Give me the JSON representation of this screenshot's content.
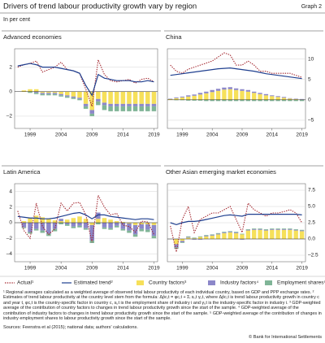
{
  "header": {
    "title": "Drivers of trend labour productivity growth vary by region",
    "graph_label": "Graph 2",
    "unit": "In per cent"
  },
  "legend": [
    {
      "name": "Actual¹",
      "color": "#a3262e",
      "kind": "dotted-line"
    },
    {
      "name": "Estimated trend²",
      "color": "#1f3f8f",
      "kind": "line"
    },
    {
      "name": "Country factors³",
      "color": "#f6e05a",
      "kind": "bar"
    },
    {
      "name": "Industry factors⁴",
      "color": "#8c87c9",
      "kind": "bar"
    },
    {
      "name": "Employment shares⁵",
      "color": "#80b597",
      "kind": "bar"
    }
  ],
  "chart_data": [
    {
      "type": "combo",
      "title": "Advanced economies",
      "yaxis": "left",
      "grid": true,
      "x": [
        1997,
        1998,
        1999,
        2000,
        2001,
        2002,
        2003,
        2004,
        2005,
        2006,
        2007,
        2008,
        2009,
        2010,
        2011,
        2012,
        2013,
        2014,
        2015,
        2016,
        2017,
        2018,
        2019
      ],
      "xlim": [
        1996.5,
        2019.6
      ],
      "xticks": [
        1999,
        2004,
        2009,
        2014,
        2019
      ],
      "ylim": [
        -3,
        3.5
      ],
      "yticks": [
        {
          "value": -2,
          "label": "–2"
        },
        0,
        2
      ],
      "series": [
        {
          "values": [
            2.0,
            2.2,
            2.3,
            2.5,
            1.6,
            1.8,
            2.0,
            2.4,
            1.8,
            1.7,
            1.5,
            0.2,
            -1.2,
            2.6,
            1.4,
            0.9,
            0.8,
            0.9,
            1.0,
            0.7,
            1.0,
            1.1,
            0.8
          ]
        },
        {
          "values": [
            2.1,
            2.2,
            2.3,
            2.2,
            2.0,
            2.0,
            2.0,
            1.9,
            1.8,
            1.7,
            1.5,
            0.5,
            -0.3,
            1.4,
            1.1,
            1.0,
            0.9,
            0.9,
            0.9,
            0.8,
            0.8,
            0.9,
            0.8
          ]
        },
        {
          "values": [
            0.0,
            0.1,
            0.2,
            0.2,
            -0.1,
            -0.1,
            -0.1,
            -0.2,
            -0.3,
            -0.4,
            -0.5,
            -1.0,
            -1.5,
            -0.6,
            -0.9,
            -1.0,
            -1.0,
            -1.0,
            -1.0,
            -1.0,
            -1.0,
            -1.0,
            -1.0
          ]
        },
        {
          "values": [
            0.0,
            0.0,
            0.0,
            -0.1,
            -0.1,
            -0.1,
            -0.1,
            -0.1,
            -0.1,
            -0.1,
            -0.1,
            -0.2,
            -0.3,
            -0.2,
            -0.2,
            -0.2,
            -0.2,
            -0.2,
            -0.2,
            -0.2,
            -0.2,
            -0.2,
            -0.2
          ]
        },
        {
          "values": [
            0.0,
            0.0,
            -0.1,
            -0.1,
            -0.1,
            -0.1,
            -0.1,
            -0.1,
            -0.1,
            -0.1,
            -0.1,
            -0.2,
            -0.2,
            -0.3,
            -0.4,
            -0.4,
            -0.4,
            -0.4,
            -0.4,
            -0.4,
            -0.4,
            -0.4,
            -0.4
          ]
        }
      ]
    },
    {
      "type": "combo",
      "title": "China",
      "yaxis": "right",
      "grid": true,
      "x": [
        1997,
        1998,
        1999,
        2000,
        2001,
        2002,
        2003,
        2004,
        2005,
        2006,
        2007,
        2008,
        2009,
        2010,
        2011,
        2012,
        2013,
        2014,
        2015,
        2016,
        2017,
        2018,
        2019
      ],
      "xlim": [
        1996.5,
        2019.6
      ],
      "xticks": [
        1999,
        2004,
        2009,
        2014,
        2019
      ],
      "ylim": [
        -7,
        12.5
      ],
      "yticks": [
        {
          "value": -5,
          "label": "–5"
        },
        0,
        5,
        10
      ],
      "series": [
        {
          "values": [
            8.5,
            7.0,
            6.5,
            7.5,
            8.0,
            8.5,
            9.0,
            9.5,
            10.5,
            11.5,
            11.0,
            8.5,
            8.5,
            9.5,
            8.5,
            7.0,
            7.0,
            6.5,
            6.5,
            6.5,
            6.5,
            6.0,
            5.5
          ]
        },
        {
          "values": [
            6.0,
            6.2,
            6.4,
            6.6,
            6.8,
            7.0,
            7.2,
            7.4,
            7.6,
            7.7,
            7.8,
            7.6,
            7.4,
            7.2,
            7.0,
            6.7,
            6.4,
            6.2,
            6.0,
            5.8,
            5.6,
            5.4,
            5.2
          ]
        },
        {
          "values": [
            0.2,
            0.4,
            0.6,
            0.8,
            1.0,
            1.3,
            1.6,
            1.9,
            2.2,
            2.5,
            2.6,
            2.4,
            2.2,
            2.0,
            1.7,
            1.4,
            1.1,
            0.9,
            0.7,
            0.5,
            0.3,
            0.2,
            0.1
          ]
        },
        {
          "values": [
            0.1,
            0.2,
            0.2,
            0.3,
            0.3,
            0.4,
            0.4,
            0.5,
            0.5,
            0.5,
            0.5,
            0.4,
            0.4,
            0.4,
            0.3,
            0.3,
            0.3,
            0.2,
            0.2,
            0.2,
            0.1,
            0.1,
            0.1
          ]
        },
        {
          "values": [
            0.0,
            -0.1,
            -0.1,
            -0.2,
            -0.2,
            -0.2,
            -0.3,
            -0.3,
            -0.3,
            -0.3,
            -0.3,
            -0.3,
            -0.3,
            -0.3,
            -0.3,
            -0.3,
            -0.3,
            -0.3,
            -0.3,
            -0.3,
            -0.3,
            -0.3,
            -0.3
          ]
        }
      ]
    },
    {
      "type": "combo",
      "title": "Latin America",
      "yaxis": "left",
      "grid": true,
      "x": [
        1997,
        1998,
        1999,
        2000,
        2001,
        2002,
        2003,
        2004,
        2005,
        2006,
        2007,
        2008,
        2009,
        2010,
        2011,
        2012,
        2013,
        2014,
        2015,
        2016,
        2017,
        2018,
        2019
      ],
      "xlim": [
        1996.5,
        2019.6
      ],
      "xticks": [
        1999,
        2004,
        2009,
        2014,
        2019
      ],
      "ylim": [
        -5,
        5
      ],
      "yticks": [
        {
          "value": -4,
          "label": "–4"
        },
        {
          "value": -2,
          "label": "–2"
        },
        0,
        2,
        4
      ],
      "series": [
        {
          "values": [
            1.5,
            -1.0,
            -2.0,
            2.5,
            -0.5,
            -1.5,
            -0.8,
            2.5,
            1.5,
            2.5,
            2.6,
            1.0,
            -2.5,
            3.5,
            2.0,
            1.0,
            1.2,
            -0.3,
            -0.5,
            -1.2,
            0.2,
            0.1,
            -1.5
          ]
        },
        {
          "values": [
            0.8,
            0.7,
            0.6,
            0.6,
            0.5,
            0.5,
            0.6,
            0.8,
            1.0,
            1.2,
            1.3,
            1.0,
            0.5,
            1.0,
            1.0,
            0.8,
            0.7,
            0.6,
            0.5,
            0.4,
            0.5,
            0.5,
            0.4
          ]
        },
        {
          "values": [
            0.0,
            0.2,
            0.6,
            0.9,
            0.7,
            0.5,
            0.3,
            0.2,
            0.4,
            0.6,
            0.8,
            0.5,
            -0.3,
            0.5,
            0.6,
            0.4,
            0.2,
            0.1,
            -0.1,
            -0.3,
            -0.2,
            -0.2,
            -0.3
          ]
        },
        {
          "values": [
            0.0,
            -0.6,
            -1.2,
            -0.8,
            -1.0,
            -1.4,
            -0.8,
            0.3,
            -0.2,
            -0.5,
            -0.4,
            -0.7,
            -2.0,
            0.8,
            -0.6,
            -0.7,
            -0.4,
            -0.8,
            -0.9,
            -1.2,
            -0.6,
            -0.7,
            -1.4
          ]
        },
        {
          "values": [
            0.0,
            -0.1,
            -0.2,
            -0.2,
            -0.3,
            -0.3,
            -0.3,
            -0.2,
            -0.2,
            -0.2,
            -0.2,
            -0.2,
            -0.3,
            -0.2,
            -0.2,
            -0.2,
            -0.2,
            -0.2,
            -0.3,
            -0.3,
            -0.3,
            -0.3,
            -0.3
          ]
        }
      ]
    },
    {
      "type": "combo",
      "title": "Other Asian emerging market economies",
      "yaxis": "right",
      "grid": true,
      "x": [
        1997,
        1998,
        1999,
        2000,
        2001,
        2002,
        2003,
        2004,
        2005,
        2006,
        2007,
        2008,
        2009,
        2010,
        2011,
        2012,
        2013,
        2014,
        2015,
        2016,
        2017,
        2018,
        2019
      ],
      "xlim": [
        1996.5,
        2019.6
      ],
      "xticks": [
        1999,
        2004,
        2009,
        2014,
        2019
      ],
      "ylim": [
        -3.5,
        8.5
      ],
      "yticks": [
        {
          "value": -2.5,
          "label": "–2.5"
        },
        {
          "value": 0,
          "label": "0.0"
        },
        2.5,
        {
          "value": 5,
          "label": "5.0"
        },
        7.5
      ],
      "series": [
        {
          "values": [
            2.0,
            -2.0,
            3.0,
            5.0,
            1.0,
            3.0,
            3.5,
            4.0,
            4.0,
            4.5,
            5.0,
            3.0,
            1.0,
            5.5,
            4.5,
            4.0,
            3.5,
            4.0,
            4.0,
            4.2,
            4.5,
            4.0,
            2.5
          ]
        },
        {
          "values": [
            2.5,
            2.2,
            2.5,
            2.7,
            2.7,
            2.8,
            3.0,
            3.2,
            3.4,
            3.6,
            3.7,
            3.6,
            3.5,
            3.8,
            3.8,
            3.8,
            3.8,
            3.8,
            3.8,
            3.8,
            3.8,
            3.8,
            3.7
          ]
        },
        {
          "values": [
            0.0,
            -0.8,
            -0.3,
            0.2,
            0.1,
            0.3,
            0.4,
            0.5,
            0.7,
            0.9,
            1.0,
            0.9,
            0.7,
            1.3,
            1.4,
            1.4,
            1.3,
            1.4,
            1.4,
            1.4,
            1.4,
            1.3,
            1.2
          ]
        },
        {
          "values": [
            0.0,
            -0.5,
            -0.2,
            0.1,
            -0.1,
            -0.1,
            0.1,
            0.1,
            0.1,
            0.1,
            0.1,
            0.1,
            -0.1,
            0.1,
            0.1,
            0.1,
            0.1,
            0.1,
            0.1,
            0.1,
            0.1,
            0.1,
            0.1
          ]
        },
        {
          "values": [
            0.0,
            -0.2,
            -0.1,
            0.1,
            0.1,
            0.1,
            0.1,
            0.1,
            0.1,
            0.1,
            0.1,
            0.1,
            0.1,
            0.1,
            0.1,
            0.1,
            0.1,
            0.1,
            0.1,
            0.1,
            0.1,
            0.1,
            0.1
          ]
        }
      ]
    }
  ],
  "footnotes": [
    "¹ Regional averages calculated as a weighted average of observed total labour productivity of each individual country, based on GDP and PPP exchange rates.",
    "² Estimates of trend labour productivity at the country level stem from the formula: Δp̂c,t = φc,t + Σᵢ sᵢ,t γᵢ,t, where Δp̂c,t is trend labour productivity growth in country c and year t, φc,t is the country-specific factor in country c, sᵢ,t is the employment share of industry i and γᵢ,t is the industry-specific factor in industry i.",
    "³ GDP-weighted average of the contribution of country factors to changes in trend labour productivity growth since the start of the sample.",
    "⁴ GDP-weighted average of the contribution of industry factors to changes in trend labour productivity growth since the start of the sample.",
    "⁵ GDP-weighted average of the contribution of changes in industry employment shares to labour productivity growth since the start of the sample."
  ],
  "sources": "Sources: Feenstra et al (2015); national data; authors' calculations.",
  "copyright": "© Bank for International Settlements"
}
